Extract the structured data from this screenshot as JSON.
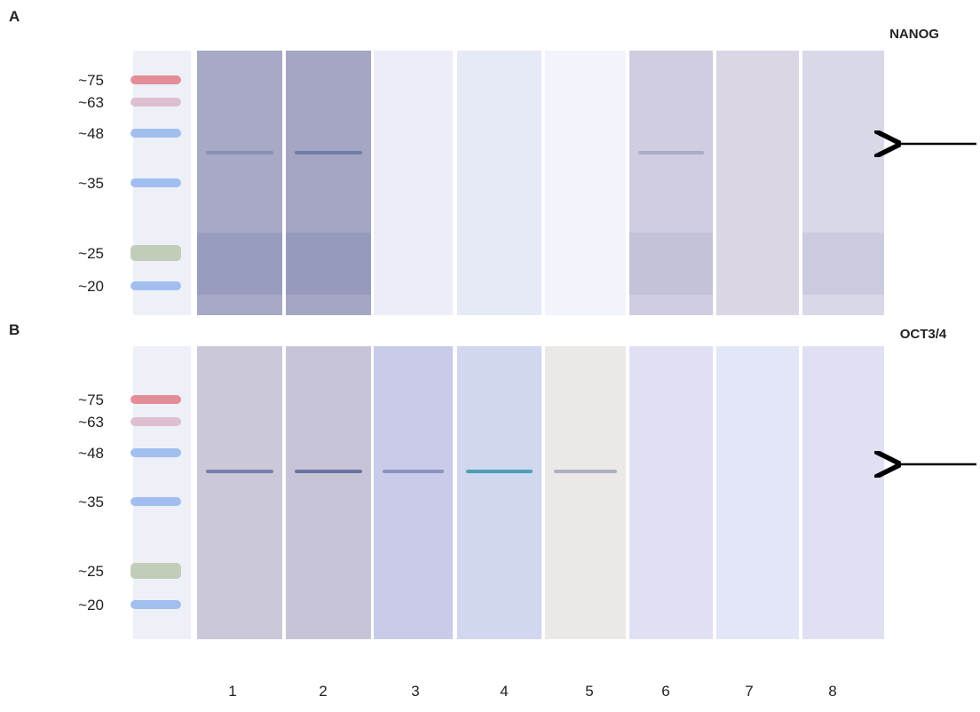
{
  "panels": [
    {
      "letter": "A",
      "target": "NANOG",
      "markers": [
        "~75",
        "~63",
        "~48",
        "~35",
        "~25",
        "~20"
      ]
    },
    {
      "letter": "B",
      "target": "OCT3/4",
      "markers": [
        "~75",
        "~63",
        "~48",
        "~35",
        "~25",
        "~20"
      ]
    }
  ],
  "lanes": [
    "1",
    "2",
    "3",
    "4",
    "5",
    "6",
    "7",
    "8"
  ]
}
